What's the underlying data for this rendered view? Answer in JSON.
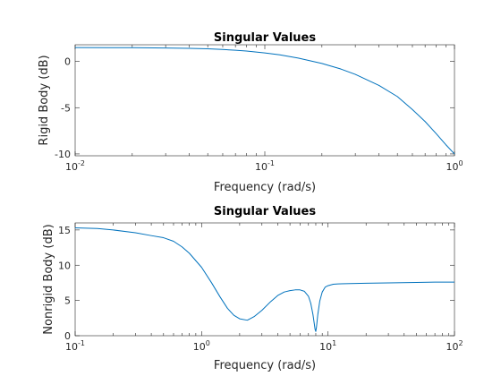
{
  "colors": {
    "series": "#0072BD",
    "axes": "#262626",
    "background": "#ffffff"
  },
  "chart_data": [
    {
      "type": "line",
      "title": "Singular Values",
      "xlabel": "Frequency (rad/s)",
      "ylabel": "Rigid Body (dB)",
      "xscale": "log",
      "xlim": [
        0.01,
        1
      ],
      "ylim": [
        -10.2,
        1.8
      ],
      "xticks": [
        {
          "base": "10",
          "exp": "-2",
          "value": 0.01
        },
        {
          "base": "10",
          "exp": "-1",
          "value": 0.1
        },
        {
          "base": "10",
          "exp": "0",
          "value": 1
        }
      ],
      "yticks": [
        {
          "label": "0",
          "value": 0
        },
        {
          "label": "-5",
          "value": -5
        },
        {
          "label": "-10",
          "value": -10
        }
      ],
      "grid": false,
      "series": [
        {
          "x": [
            0.01,
            0.015,
            0.02,
            0.03,
            0.04,
            0.05,
            0.06,
            0.07,
            0.08,
            0.1,
            0.12,
            0.15,
            0.2,
            0.25,
            0.3,
            0.4,
            0.5,
            0.6,
            0.7,
            0.8,
            0.9,
            1.0
          ],
          "y": [
            1.5,
            1.49,
            1.48,
            1.45,
            1.41,
            1.36,
            1.29,
            1.21,
            1.12,
            0.92,
            0.71,
            0.36,
            -0.22,
            -0.8,
            -1.4,
            -2.6,
            -3.8,
            -5.2,
            -6.5,
            -7.8,
            -9.0,
            -10.0
          ]
        }
      ]
    },
    {
      "type": "line",
      "title": "Singular Values",
      "xlabel": "Frequency (rad/s)",
      "ylabel": "Nonrigid Body (dB)",
      "xscale": "log",
      "xlim": [
        0.1,
        100
      ],
      "ylim": [
        0,
        16
      ],
      "xticks": [
        {
          "base": "10",
          "exp": "-1",
          "value": 0.1
        },
        {
          "base": "10",
          "exp": "0",
          "value": 1
        },
        {
          "base": "10",
          "exp": "1",
          "value": 10
        },
        {
          "base": "10",
          "exp": "2",
          "value": 100
        }
      ],
      "yticks": [
        {
          "label": "0",
          "value": 0
        },
        {
          "label": "5",
          "value": 5
        },
        {
          "label": "10",
          "value": 10
        },
        {
          "label": "15",
          "value": 15
        }
      ],
      "grid": false,
      "series": [
        {
          "x": [
            0.1,
            0.15,
            0.2,
            0.3,
            0.4,
            0.5,
            0.6,
            0.7,
            0.8,
            1.0,
            1.2,
            1.4,
            1.6,
            1.8,
            2.0,
            2.3,
            2.6,
            3.0,
            3.5,
            4.0,
            4.5,
            5.0,
            5.5,
            6.0,
            6.5,
            7.0,
            7.3,
            7.6,
            7.8,
            7.9,
            8.0,
            8.1,
            8.3,
            8.6,
            9.0,
            9.5,
            10,
            11,
            12,
            15,
            20,
            30,
            50,
            70,
            100
          ],
          "y": [
            15.3,
            15.2,
            15.0,
            14.6,
            14.2,
            13.9,
            13.4,
            12.6,
            11.7,
            9.7,
            7.5,
            5.5,
            3.9,
            2.9,
            2.4,
            2.2,
            2.7,
            3.6,
            4.8,
            5.7,
            6.2,
            6.4,
            6.5,
            6.5,
            6.3,
            5.6,
            4.6,
            3.0,
            1.6,
            0.9,
            0.6,
            1.2,
            3.0,
            4.9,
            6.2,
            6.9,
            7.1,
            7.3,
            7.35,
            7.4,
            7.45,
            7.5,
            7.55,
            7.6,
            7.6
          ]
        }
      ]
    }
  ]
}
